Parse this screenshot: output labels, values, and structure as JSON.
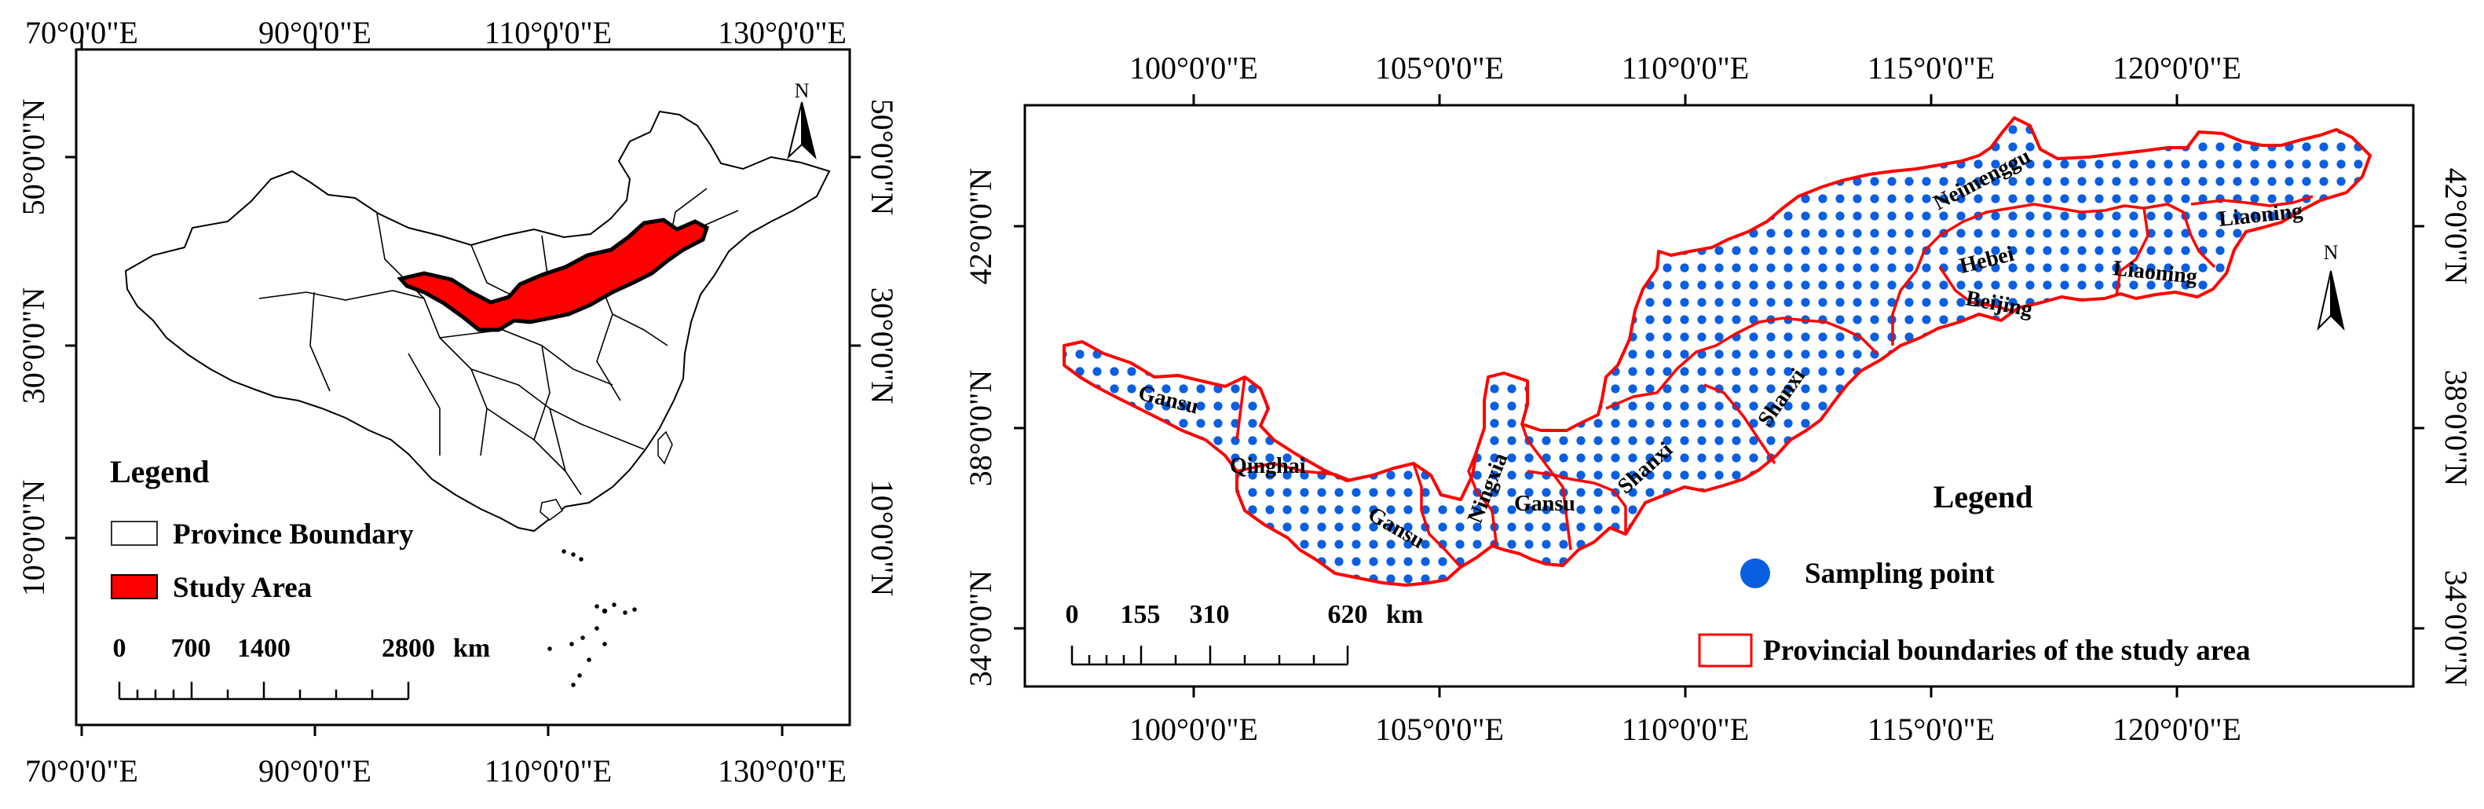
{
  "overview_map": {
    "lon_labels": [
      "70°0'0\"E",
      "90°0'0\"E",
      "110°0'0\"E",
      "130°0'0\"E"
    ],
    "lat_labels": [
      "50°0'0\"N",
      "30°0'0\"N",
      "10°0'0\"N"
    ],
    "north_arrow": "N",
    "legend": {
      "title": "Legend",
      "items": [
        {
          "label": "Province Boundary",
          "symbol": "province-boundary-swatch",
          "color": "#ffffff"
        },
        {
          "label": "Study Area",
          "symbol": "study-area-swatch",
          "color": "#ff0000"
        }
      ]
    },
    "scale_bar": {
      "ticks": [
        "0",
        "700",
        "1400",
        "2800"
      ],
      "unit": "km"
    }
  },
  "detail_map": {
    "lon_labels": [
      "100°0'0\"E",
      "105°0'0\"E",
      "110°0'0\"E",
      "115°0'0\"E",
      "120°0'0\"E"
    ],
    "lat_labels": [
      "42°0'0\"N",
      "38°0'0\"N",
      "34°0'0\"N"
    ],
    "north_arrow": "N",
    "province_labels": [
      "Gansu",
      "Qinghai",
      "Gansu",
      "Ningxia",
      "Gansu",
      "Shanxi",
      "Shanxi",
      "Neimenggu",
      "Hebei",
      "Beijing",
      "Liaoning",
      "Liaoning"
    ],
    "legend": {
      "title": "Legend",
      "items": [
        {
          "label": "Sampling point",
          "symbol": "sampling-point-dot",
          "color": "#0a5fe0"
        },
        {
          "label": "Provincial boundaries of the study area",
          "symbol": "provincial-boundary-swatch",
          "color": "#ff0000"
        }
      ]
    },
    "scale_bar": {
      "ticks": [
        "0",
        "155",
        "310",
        "620"
      ],
      "unit": "km"
    }
  }
}
